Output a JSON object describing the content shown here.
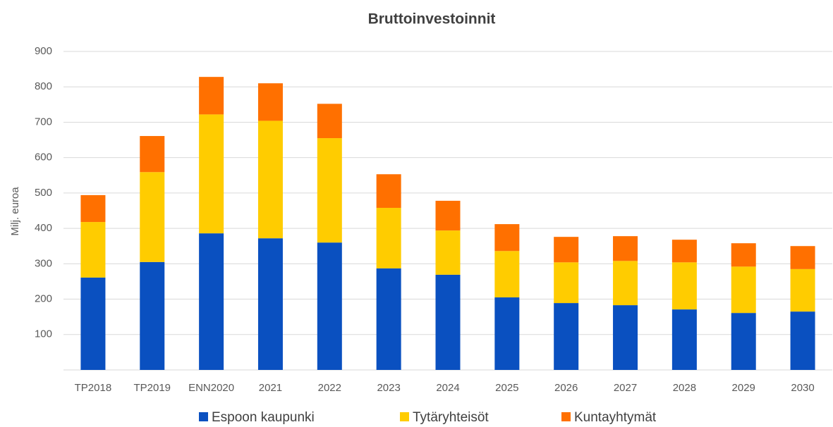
{
  "chart_data": {
    "type": "stacked_bar",
    "title": "Bruttoinvestoinnit",
    "y_label": "Milj. euroa",
    "categories": [
      "TP2018",
      "TP2019",
      "ENN2020",
      "2021",
      "2022",
      "2023",
      "2024",
      "2025",
      "2026",
      "2027",
      "2028",
      "2029",
      "2030"
    ],
    "series": [
      {
        "name": "Espoon kaupunki",
        "color": "#0a50c0",
        "values": [
          261,
          305,
          386,
          372,
          360,
          287,
          269,
          205,
          189,
          183,
          171,
          161,
          165
        ]
      },
      {
        "name": "Tytäryhteisöt",
        "color": "#ffcc00",
        "values": [
          157,
          254,
          336,
          332,
          295,
          171,
          125,
          131,
          115,
          125,
          133,
          131,
          120
        ]
      },
      {
        "name": "Kuntayhtymät",
        "color": "#ff7000",
        "values": [
          76,
          102,
          106,
          106,
          97,
          95,
          84,
          76,
          72,
          70,
          64,
          66,
          65
        ]
      }
    ],
    "ylim": [
      0,
      900
    ],
    "yticks": [
      100,
      200,
      300,
      400,
      500,
      600,
      700,
      800,
      900
    ],
    "grid": true,
    "legend": "bottom"
  }
}
